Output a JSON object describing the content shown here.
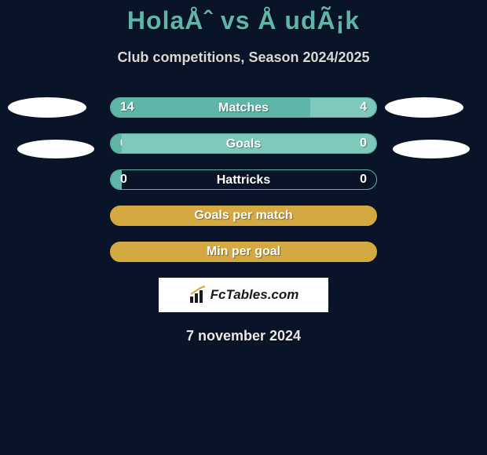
{
  "page": {
    "title": "HolaÅˆ vs Å udÃ¡k",
    "subtitle": "Club competitions, Season 2024/2025",
    "date": "7 november 2024",
    "background_color": "#0a1428",
    "title_color": "#5fb5a8"
  },
  "stats": {
    "matches": {
      "label": "Matches",
      "left_value": "14",
      "right_value": "4",
      "left_pct": 75,
      "bar_left_color": "#5fb5a8",
      "bar_right_color": "#7ec9bc"
    },
    "goals": {
      "label": "Goals",
      "left_value": "0",
      "right_value": "0",
      "left_pct": 4,
      "bar_left_color": "#5fb5a8",
      "bar_right_color": "#7ec9bc"
    },
    "hattricks": {
      "label": "Hattricks",
      "left_value": "0",
      "right_value": "0",
      "left_pct": 4,
      "bar_left_color": "#5fb5a8",
      "bar_right_color": "transparent"
    },
    "goals_per_match": {
      "label": "Goals per match",
      "bar_color": "#d4a942"
    },
    "min_per_goal": {
      "label": "Min per goal",
      "bar_color": "#d4a942"
    }
  },
  "logo": {
    "text": "FcTables.com",
    "box_bg": "#ffffff",
    "text_color": "#1a1a1a"
  }
}
